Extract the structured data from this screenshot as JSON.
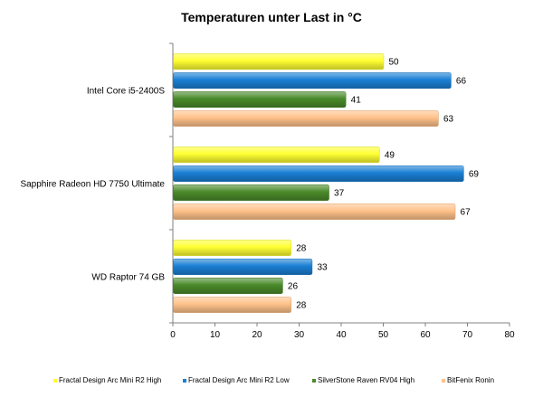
{
  "chart_data": {
    "type": "bar",
    "orientation": "horizontal",
    "title": "Temperaturen unter Last in °C",
    "xlabel": "",
    "ylabel": "",
    "categories": [
      "Intel Core i5-2400S",
      "Sapphire Radeon HD 7750 Ultimate",
      "WD Raptor 74 GB"
    ],
    "series": [
      {
        "name": "Fractal Design Arc Mini R2 High",
        "values": [
          50,
          49,
          28
        ],
        "color": "#ffff33"
      },
      {
        "name": "Fractal Design Arc Mini R2 Low",
        "values": [
          66,
          69,
          33
        ],
        "color": "#1a7fd4"
      },
      {
        "name": "SilverStone Raven RV04 High",
        "values": [
          41,
          37,
          26
        ],
        "color": "#4a8a2a"
      },
      {
        "name": "BitFenix Ronin",
        "values": [
          63,
          67,
          28
        ],
        "color": "#ffc28a"
      }
    ],
    "xlim": [
      0,
      80
    ],
    "ticks": [
      0,
      10,
      20,
      30,
      40,
      50,
      60,
      70,
      80
    ],
    "grid": false,
    "legend_position": "bottom"
  }
}
